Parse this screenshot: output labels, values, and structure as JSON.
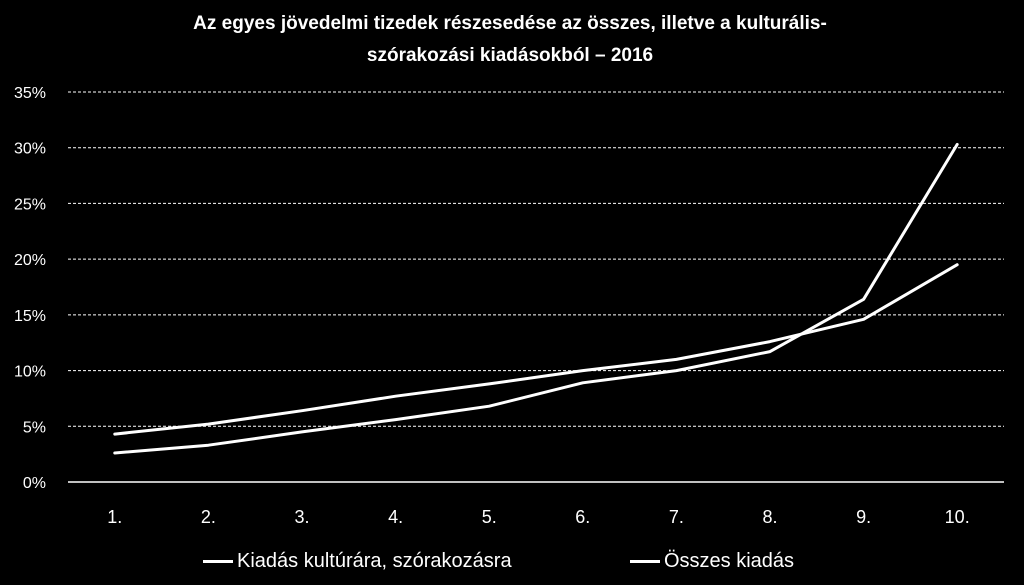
{
  "chart_data": {
    "type": "line",
    "title_lines": [
      "Az egyes jövedelmi tizedek részesedése az összes, illetve a kulturális-",
      "szórakozási kiadásokból – 2016"
    ],
    "categories": [
      "1.",
      "2.",
      "3.",
      "4.",
      "5.",
      "6.",
      "7.",
      "8.",
      "9.",
      "10."
    ],
    "yticks": [
      "0%",
      "5%",
      "10%",
      "15%",
      "20%",
      "25%",
      "30%",
      "35%"
    ],
    "ylim": [
      0,
      35
    ],
    "ytick_step": 5,
    "grid": true,
    "legend_position": "bottom",
    "series": [
      {
        "name": "Kiadás kultúrára, szórakozásra",
        "values": [
          2.6,
          3.3,
          4.5,
          5.6,
          6.8,
          8.9,
          10.0,
          11.7,
          16.4,
          30.3
        ]
      },
      {
        "name": "Összes kiadás",
        "values": [
          4.3,
          5.2,
          6.4,
          7.7,
          8.8,
          10.0,
          11.0,
          12.6,
          14.6,
          19.5
        ]
      }
    ],
    "colors": {
      "background": "#000000",
      "line": "#ffffff",
      "grid": "#ffffff",
      "text": "#ffffff"
    }
  }
}
